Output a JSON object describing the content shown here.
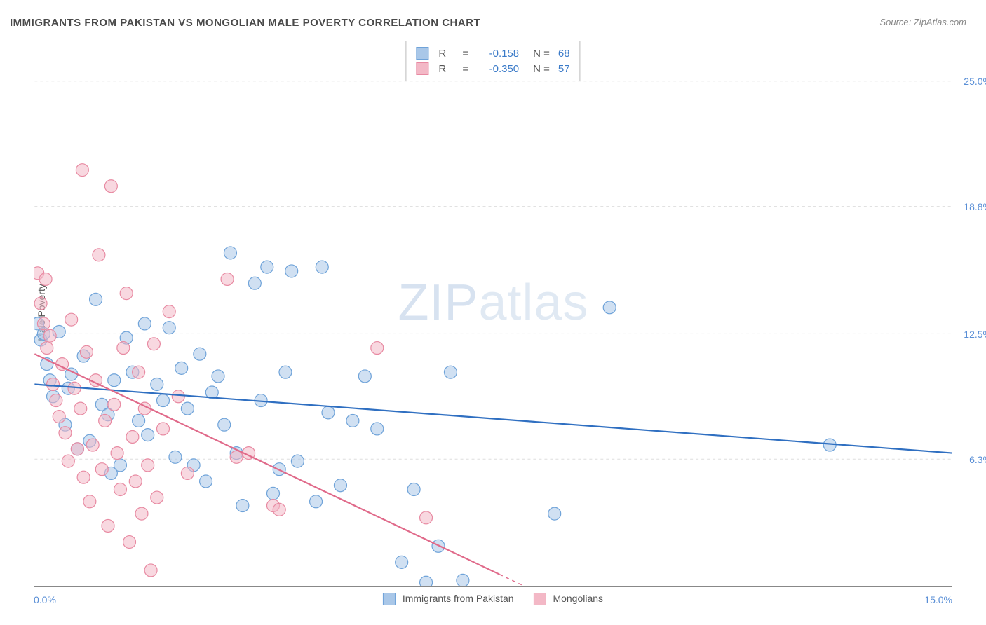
{
  "title": "IMMIGRANTS FROM PAKISTAN VS MONGOLIAN MALE POVERTY CORRELATION CHART",
  "source": "Source: ZipAtlas.com",
  "y_axis_label": "Male Poverty",
  "watermark_bold": "ZIP",
  "watermark_thin": "atlas",
  "x_ticks": {
    "left": "0.0%",
    "right": "15.0%"
  },
  "y_ticks": [
    {
      "value": 25.0,
      "label": "25.0%"
    },
    {
      "value": 18.8,
      "label": "18.8%"
    },
    {
      "value": 12.5,
      "label": "12.5%"
    },
    {
      "value": 6.3,
      "label": "6.3%"
    }
  ],
  "chart": {
    "type": "scatter",
    "xlim": [
      0,
      15
    ],
    "ylim": [
      0,
      27
    ],
    "background_color": "#ffffff",
    "grid_color": "#dddddd",
    "axis_color": "#888888",
    "tick_font_color": "#5a8fd6",
    "marker_radius": 9,
    "marker_stroke_width": 1.2,
    "trend_line_width": 2.2,
    "series": [
      {
        "name": "Immigrants from Pakistan",
        "fill": "#a9c7e8",
        "stroke": "#6fa3d9",
        "fill_opacity": 0.55,
        "R": "-0.158",
        "N": "68",
        "trend": {
          "x1": 0,
          "y1": 10.0,
          "x2": 15,
          "y2": 6.6,
          "color": "#2f6fc1"
        },
        "points": [
          [
            0.05,
            13.0
          ],
          [
            0.1,
            12.2
          ],
          [
            0.15,
            12.5
          ],
          [
            0.2,
            11.0
          ],
          [
            0.25,
            10.2
          ],
          [
            0.3,
            9.4
          ],
          [
            0.4,
            12.6
          ],
          [
            0.5,
            8.0
          ],
          [
            0.55,
            9.8
          ],
          [
            0.6,
            10.5
          ],
          [
            0.7,
            6.8
          ],
          [
            0.8,
            11.4
          ],
          [
            0.9,
            7.2
          ],
          [
            1.0,
            14.2
          ],
          [
            1.1,
            9.0
          ],
          [
            1.2,
            8.5
          ],
          [
            1.25,
            5.6
          ],
          [
            1.3,
            10.2
          ],
          [
            1.4,
            6.0
          ],
          [
            1.5,
            12.3
          ],
          [
            1.6,
            10.6
          ],
          [
            1.7,
            8.2
          ],
          [
            1.8,
            13.0
          ],
          [
            1.85,
            7.5
          ],
          [
            2.0,
            10.0
          ],
          [
            2.1,
            9.2
          ],
          [
            2.2,
            12.8
          ],
          [
            2.3,
            6.4
          ],
          [
            2.4,
            10.8
          ],
          [
            2.5,
            8.8
          ],
          [
            2.6,
            6.0
          ],
          [
            2.7,
            11.5
          ],
          [
            2.8,
            5.2
          ],
          [
            2.9,
            9.6
          ],
          [
            3.0,
            10.4
          ],
          [
            3.1,
            8.0
          ],
          [
            3.2,
            16.5
          ],
          [
            3.3,
            6.6
          ],
          [
            3.4,
            4.0
          ],
          [
            3.6,
            15.0
          ],
          [
            3.7,
            9.2
          ],
          [
            3.8,
            15.8
          ],
          [
            3.9,
            4.6
          ],
          [
            4.0,
            5.8
          ],
          [
            4.1,
            10.6
          ],
          [
            4.2,
            15.6
          ],
          [
            4.3,
            6.2
          ],
          [
            4.6,
            4.2
          ],
          [
            4.7,
            15.8
          ],
          [
            4.8,
            8.6
          ],
          [
            5.0,
            5.0
          ],
          [
            5.2,
            8.2
          ],
          [
            5.4,
            10.4
          ],
          [
            5.6,
            7.8
          ],
          [
            6.0,
            1.2
          ],
          [
            6.2,
            4.8
          ],
          [
            6.4,
            0.2
          ],
          [
            6.6,
            2.0
          ],
          [
            6.8,
            10.6
          ],
          [
            7.0,
            0.3
          ],
          [
            8.5,
            3.6
          ],
          [
            9.4,
            13.8
          ],
          [
            13.0,
            7.0
          ]
        ]
      },
      {
        "name": "Mongolians",
        "fill": "#f3b8c6",
        "stroke": "#e88aa2",
        "fill_opacity": 0.55,
        "R": "-0.350",
        "N": "57",
        "trend": {
          "x1": 0,
          "y1": 11.5,
          "x2": 7.6,
          "y2": 0.6,
          "color": "#e06a8a",
          "dash_extend_to_x": 10.2
        },
        "points": [
          [
            0.05,
            15.5
          ],
          [
            0.1,
            14.0
          ],
          [
            0.15,
            13.0
          ],
          [
            0.18,
            15.2
          ],
          [
            0.2,
            11.8
          ],
          [
            0.25,
            12.4
          ],
          [
            0.3,
            10.0
          ],
          [
            0.35,
            9.2
          ],
          [
            0.4,
            8.4
          ],
          [
            0.45,
            11.0
          ],
          [
            0.5,
            7.6
          ],
          [
            0.55,
            6.2
          ],
          [
            0.6,
            13.2
          ],
          [
            0.65,
            9.8
          ],
          [
            0.7,
            6.8
          ],
          [
            0.75,
            8.8
          ],
          [
            0.78,
            20.6
          ],
          [
            0.8,
            5.4
          ],
          [
            0.85,
            11.6
          ],
          [
            0.9,
            4.2
          ],
          [
            0.95,
            7.0
          ],
          [
            1.0,
            10.2
          ],
          [
            1.05,
            16.4
          ],
          [
            1.1,
            5.8
          ],
          [
            1.15,
            8.2
          ],
          [
            1.2,
            3.0
          ],
          [
            1.25,
            19.8
          ],
          [
            1.3,
            9.0
          ],
          [
            1.35,
            6.6
          ],
          [
            1.4,
            4.8
          ],
          [
            1.45,
            11.8
          ],
          [
            1.5,
            14.5
          ],
          [
            1.55,
            2.2
          ],
          [
            1.6,
            7.4
          ],
          [
            1.65,
            5.2
          ],
          [
            1.7,
            10.6
          ],
          [
            1.75,
            3.6
          ],
          [
            1.8,
            8.8
          ],
          [
            1.85,
            6.0
          ],
          [
            1.9,
            0.8
          ],
          [
            1.95,
            12.0
          ],
          [
            2.0,
            4.4
          ],
          [
            2.1,
            7.8
          ],
          [
            2.2,
            13.6
          ],
          [
            2.35,
            9.4
          ],
          [
            2.5,
            5.6
          ],
          [
            3.15,
            15.2
          ],
          [
            3.3,
            6.4
          ],
          [
            3.5,
            6.6
          ],
          [
            3.9,
            4.0
          ],
          [
            4.0,
            3.8
          ],
          [
            5.6,
            11.8
          ],
          [
            6.4,
            3.4
          ]
        ]
      }
    ]
  },
  "bottom_legend": [
    {
      "label": "Immigrants from Pakistan",
      "fill": "#a9c7e8",
      "stroke": "#6fa3d9"
    },
    {
      "label": "Mongolians",
      "fill": "#f3b8c6",
      "stroke": "#e88aa2"
    }
  ]
}
